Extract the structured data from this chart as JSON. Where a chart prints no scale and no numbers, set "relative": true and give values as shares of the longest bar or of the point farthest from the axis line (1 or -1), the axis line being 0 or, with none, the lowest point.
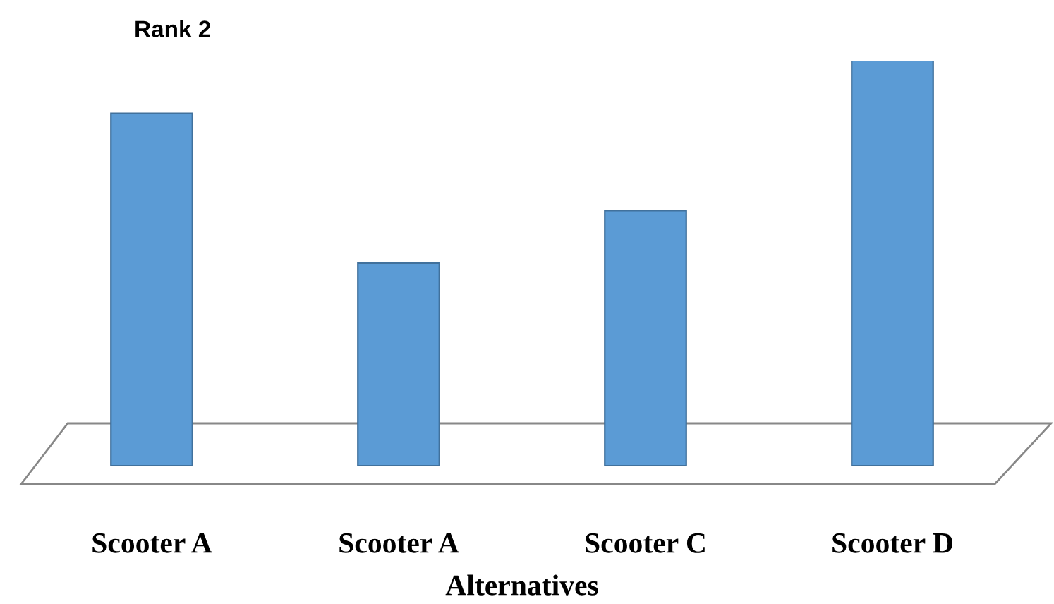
{
  "chart_data": {
    "type": "bar",
    "title": "Rank 2",
    "xlabel": "Alternatives",
    "relative": true,
    "categories": [
      "Scooter A",
      "Scooter A",
      "Scooter C",
      "Scooter D"
    ],
    "series": [
      {
        "color": "#5b9bd5",
        "values": [
          0.87,
          0.5,
          0.63,
          1.0
        ]
      }
    ],
    "grid": false,
    "legend": false
  }
}
